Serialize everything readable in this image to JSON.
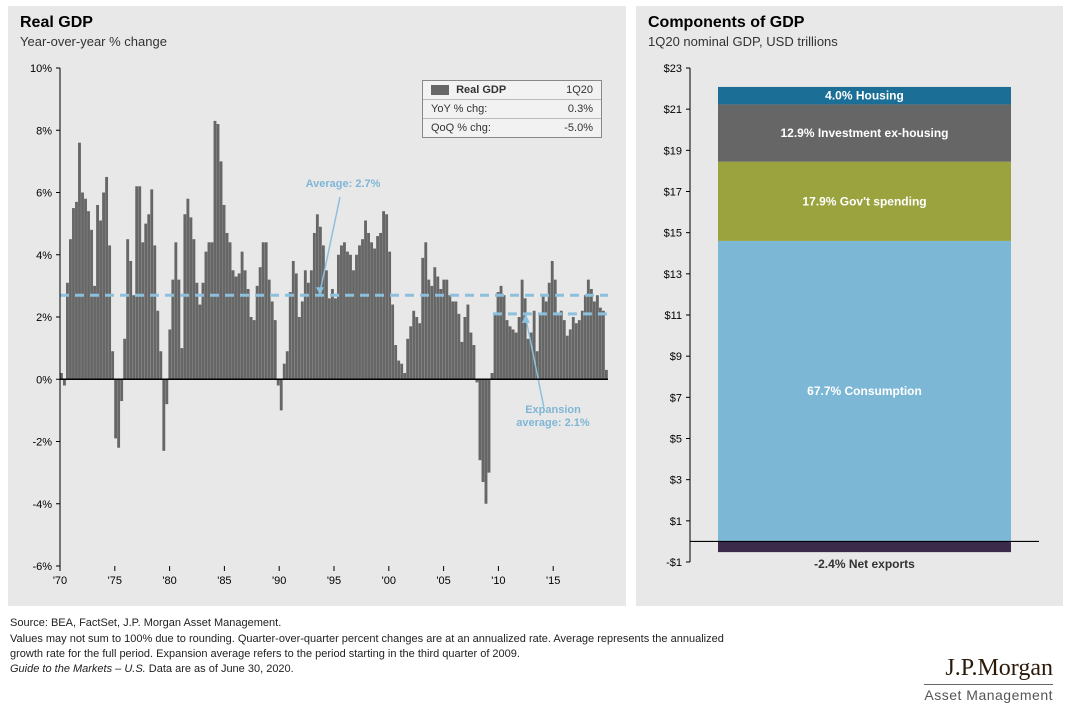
{
  "left_panel": {
    "title": "Real GDP",
    "subtitle": "Year-over-year % change",
    "legend": {
      "series_label": "Real GDP",
      "period": "1Q20",
      "rows": [
        {
          "label": "YoY % chg:",
          "value": "0.3%"
        },
        {
          "label": "QoQ % chg:",
          "value": "-5.0%"
        }
      ],
      "swatch_color": "#666666"
    },
    "annotations": {
      "average": {
        "text": "Average: 2.7%",
        "value": 2.7,
        "color": "#7fb6d6"
      },
      "expansion": {
        "text_l1": "Expansion",
        "text_l2": "average: 2.1%",
        "value": 2.1,
        "start_year": 2009.5,
        "color": "#7fb6d6"
      }
    },
    "chart": {
      "type": "bar",
      "x_start": 1970,
      "x_end": 2020,
      "x_ticks": [
        "'70",
        "'75",
        "'80",
        "'85",
        "'90",
        "'95",
        "'00",
        "'05",
        "'10",
        "'15"
      ],
      "x_tick_years": [
        1970,
        1975,
        1980,
        1985,
        1990,
        1995,
        2000,
        2005,
        2010,
        2015
      ],
      "y_min": -6,
      "y_max": 10,
      "y_ticks": [
        -6,
        -4,
        -2,
        0,
        2,
        4,
        6,
        8,
        10
      ],
      "bar_color": "#666666",
      "avg_line_color": "#8cc0dd",
      "avg_dash": "9,6",
      "axis_color": "#000000",
      "tick_label_fontsize": 11,
      "background_color": "#e8e8e8",
      "values": [
        0.2,
        -0.2,
        3.1,
        4.5,
        5.5,
        5.7,
        7.6,
        6.0,
        5.8,
        5.4,
        4.8,
        3.0,
        5.6,
        5.1,
        6.0,
        6.5,
        4.3,
        0.9,
        -1.9,
        -2.2,
        -0.7,
        1.3,
        4.5,
        3.8,
        2.7,
        6.2,
        6.2,
        4.4,
        5.0,
        5.3,
        6.1,
        4.3,
        2.2,
        0.9,
        -2.3,
        -0.8,
        1.6,
        3.2,
        4.4,
        3.2,
        1.0,
        5.3,
        5.8,
        5.2,
        4.5,
        3.1,
        2.4,
        3.1,
        4.1,
        4.4,
        4.4,
        8.3,
        8.2,
        7.0,
        5.6,
        4.7,
        4.4,
        3.5,
        3.3,
        3.4,
        4.1,
        3.5,
        2.9,
        2.0,
        1.9,
        3.0,
        3.6,
        4.4,
        4.4,
        3.2,
        2.5,
        1.9,
        -0.2,
        -1.0,
        0.5,
        0.9,
        2.8,
        3.8,
        3.4,
        2.0,
        2.5,
        3.5,
        3.1,
        3.5,
        4.7,
        5.3,
        4.9,
        4.3,
        3.5,
        2.6,
        2.9,
        2.6,
        4.0,
        4.3,
        4.4,
        4.1,
        4.0,
        3.5,
        4.0,
        4.3,
        4.5,
        5.1,
        4.7,
        4.4,
        4.2,
        4.6,
        4.7,
        5.4,
        5.3,
        4.1,
        2.4,
        1.1,
        0.6,
        0.5,
        0.2,
        1.3,
        1.7,
        2.2,
        2.0,
        1.8,
        3.9,
        4.4,
        3.2,
        3.0,
        3.6,
        3.3,
        2.9,
        3.2,
        3.2,
        2.7,
        2.5,
        2.5,
        2.1,
        1.2,
        2.0,
        2.4,
        1.5,
        1.1,
        -0.1,
        -2.6,
        -3.3,
        -4.0,
        -3.0,
        0.2,
        2.1,
        2.8,
        3.0,
        2.7,
        1.9,
        1.7,
        1.6,
        1.5,
        2.0,
        3.2,
        2.6,
        1.3,
        1.5,
        2.2,
        0.9,
        2.1,
        2.7,
        2.5,
        3.1,
        3.8,
        3.2,
        2.1,
        2.2,
        1.9,
        1.4,
        1.6,
        2.0,
        1.8,
        1.9,
        2.2,
        2.7,
        3.2,
        2.9,
        2.5,
        2.7,
        2.3,
        2.2,
        0.3
      ]
    }
  },
  "right_panel": {
    "title": "Components of GDP",
    "subtitle": "1Q20 nominal GDP, USD trillions",
    "chart": {
      "type": "stacked-bar",
      "y_min": -1,
      "y_max": 23,
      "y_tick_step": 2,
      "y_ticks": [
        -1,
        1,
        3,
        5,
        7,
        9,
        11,
        13,
        15,
        17,
        19,
        21,
        23
      ],
      "background_color": "#e8e8e8",
      "axis_color": "#000000",
      "tick_label_fontsize": 11,
      "segments": [
        {
          "name": "net-exports",
          "label": "-2.4% Net exports",
          "from": -0.52,
          "to": 0,
          "color": "#3b2a4a",
          "text_color": "#333333",
          "text_outside": true
        },
        {
          "name": "consumption",
          "label": "67.7% Consumption",
          "from": 0,
          "to": 14.6,
          "color": "#7cb8d6",
          "text_color": "#ffffff",
          "text_outside": false
        },
        {
          "name": "govt-spending",
          "label": "17.9% Gov't  spending",
          "from": 14.6,
          "to": 18.45,
          "color": "#9aa33d",
          "text_color": "#ffffff",
          "text_outside": false
        },
        {
          "name": "investment-ex-housing",
          "label": "12.9% Investment ex-housing",
          "from": 18.45,
          "to": 21.23,
          "color": "#666666",
          "text_color": "#ffffff",
          "text_outside": false
        },
        {
          "name": "housing",
          "label": "4.0% Housing",
          "from": 21.23,
          "to": 22.08,
          "color": "#1b6f96",
          "text_color": "#ffffff",
          "text_outside": false
        }
      ]
    }
  },
  "footnote": {
    "source": "Source: BEA, FactSet, J.P. Morgan Asset Management.",
    "line2": "Values may not sum to 100% due to rounding. Quarter-over-quarter percent changes are at an annualized rate. Average represents the annualized",
    "line3": "growth rate for the full period. Expansion average refers to the period starting in the third quarter of 2009.",
    "line4_prefix": "Guide to the Markets – U.S.",
    "line4_suffix": " Data are as of June 30, 2020."
  },
  "logo": {
    "top": "J.P.Morgan",
    "bottom": "Asset Management"
  }
}
